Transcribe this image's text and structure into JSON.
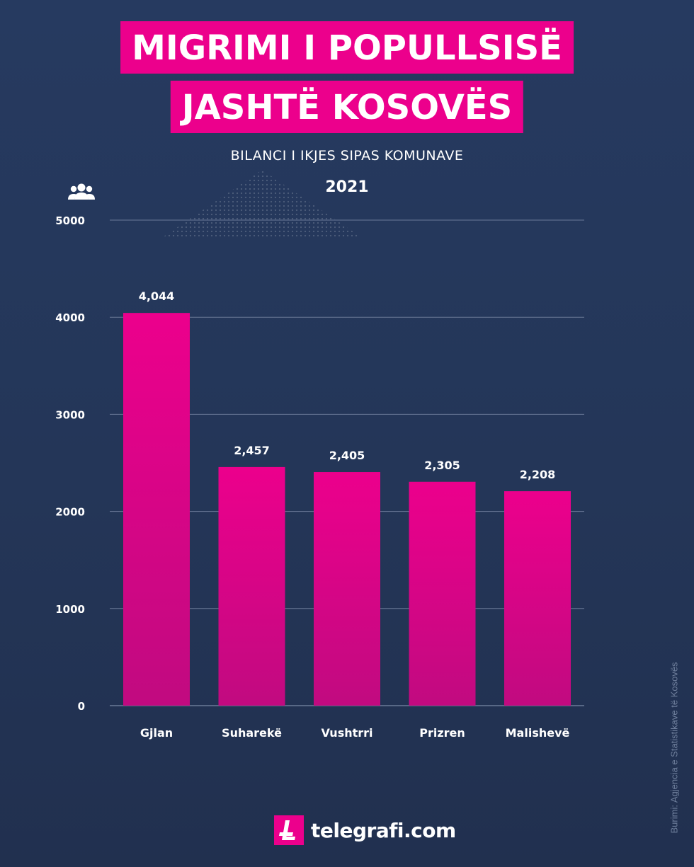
{
  "title": {
    "line1": "MIGRIMI I POPULLSISË",
    "line2": "JASHTË KOSOVËS"
  },
  "subtitle": "BILANCI I IKJES SIPAS KOMUNAVE",
  "year": "2021",
  "icon": "people-group-icon",
  "source": "Burimi: Agjencia e Statistikave të Kosovës",
  "brand": {
    "name": "telegrafi.com",
    "color": "#ec008c"
  },
  "chart_data": {
    "type": "bar",
    "title": "MIGRIMI I POPULLSISË JASHTË KOSOVËS",
    "subtitle": "BILANCI I IKJES SIPAS KOMUNAVE",
    "categories": [
      "Gjlan",
      "Suharekë",
      "Vushtrri",
      "Prizren",
      "Malishevë"
    ],
    "values": [
      4044,
      2457,
      2405,
      2305,
      2208
    ],
    "value_labels": [
      "4,044",
      "2,457",
      "2,405",
      "2,305",
      "2,208"
    ],
    "yticks": [
      0,
      1000,
      2000,
      3000,
      4000,
      5000
    ],
    "ylim": [
      0,
      5000
    ],
    "xlabel": "",
    "ylabel": "",
    "grid": true,
    "bar_color_top": "#ec008c",
    "bar_color_bottom": "#c10a80"
  }
}
